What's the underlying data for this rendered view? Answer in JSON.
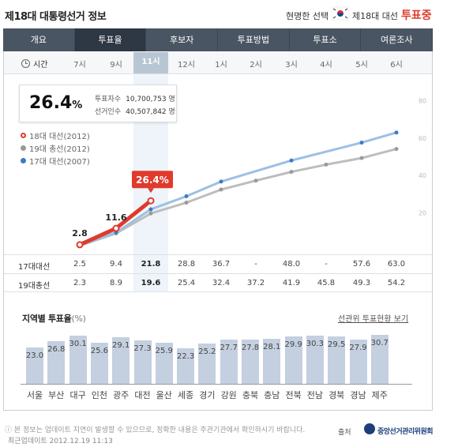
{
  "header": {
    "title": "제18대 대통령선거 정보",
    "slogan": "현명한 선택",
    "election": "제18대 대선",
    "status": "투표중"
  },
  "nav": {
    "tabs": [
      {
        "label": "개요",
        "active": false
      },
      {
        "label": "투표율",
        "active": true
      },
      {
        "label": "후보자",
        "active": false
      },
      {
        "label": "투표방법",
        "active": false
      },
      {
        "label": "투표소",
        "active": false
      },
      {
        "label": "여론조사",
        "active": false
      }
    ]
  },
  "timebar": {
    "label": "시간",
    "hours": [
      "7시",
      "9시",
      "11시",
      "12시",
      "1시",
      "2시",
      "3시",
      "4시",
      "5시",
      "6시"
    ],
    "current": "11시"
  },
  "summary": {
    "rate": "26.4",
    "rate_unit": "%",
    "voters_label": "투표자수",
    "voters": "10,700,753",
    "voters_unit": "명",
    "electors_label": "선거인수",
    "electors": "40,507,842",
    "electors_unit": "명"
  },
  "legend": {
    "items": [
      "18대 대선(2012)",
      "19대 총선(2012)",
      "17대 대선(2007)"
    ]
  },
  "chart_data": {
    "type": "line",
    "x": [
      "7시",
      "9시",
      "11시",
      "12시",
      "1시",
      "2시",
      "3시",
      "4시",
      "5시",
      "6시"
    ],
    "ylim": [
      0,
      70
    ],
    "yticks": [
      "20",
      "40",
      "60",
      "80"
    ],
    "series": [
      {
        "name": "18대 대선(2012)",
        "color": "#e03a2c",
        "values": [
          2.8,
          11.6,
          26.4,
          null,
          null,
          null,
          null,
          null,
          null,
          null
        ],
        "labels": [
          "2.8",
          "11.6",
          "26.4%"
        ]
      },
      {
        "name": "19대 총선(2012)",
        "color": "#9a9a9a",
        "values": [
          2.3,
          8.9,
          19.6,
          25.4,
          32.4,
          37.2,
          41.9,
          45.8,
          49.3,
          54.2
        ]
      },
      {
        "name": "17대 대선(2007)",
        "color": "#3c7cc2",
        "values": [
          2.5,
          9.4,
          21.8,
          28.8,
          36.7,
          null,
          48.0,
          null,
          57.6,
          63.0
        ]
      }
    ]
  },
  "table": {
    "rows": [
      {
        "label": "17대대선",
        "values": [
          "2.5",
          "9.4",
          "21.8",
          "28.8",
          "36.7",
          "-",
          "48.0",
          "-",
          "57.6",
          "63.0"
        ]
      },
      {
        "label": "19대총선",
        "values": [
          "2.3",
          "8.9",
          "19.6",
          "25.4",
          "32.4",
          "37.2",
          "41.9",
          "45.8",
          "49.3",
          "54.2"
        ]
      }
    ]
  },
  "regional": {
    "title": "지역별 투표율",
    "unit": "(%)",
    "link": "선관위 투표현황 보기",
    "regions": [
      "서울",
      "부산",
      "대구",
      "인천",
      "광주",
      "대전",
      "울산",
      "세종",
      "경기",
      "강원",
      "충북",
      "충남",
      "전북",
      "전남",
      "경북",
      "경남",
      "제주"
    ],
    "values": [
      "23.0",
      "26.8",
      "30.1",
      "25.6",
      "29.1",
      "27.3",
      "25.9",
      "22.3",
      "25.2",
      "27.7",
      "27.8",
      "28.1",
      "29.9",
      "30.3",
      "29.5",
      "27.9",
      "30.7"
    ]
  },
  "footer": {
    "note": "본 정보는 업데이트 지연이 발생할 수 있으므로, 정확한 내용은 주관기관에서 확인하시기 바랍니다.",
    "updated": "최근업데이트 2012.12.19 11:13",
    "source_label": "출처",
    "source_org": "중앙선거관리위원회"
  }
}
